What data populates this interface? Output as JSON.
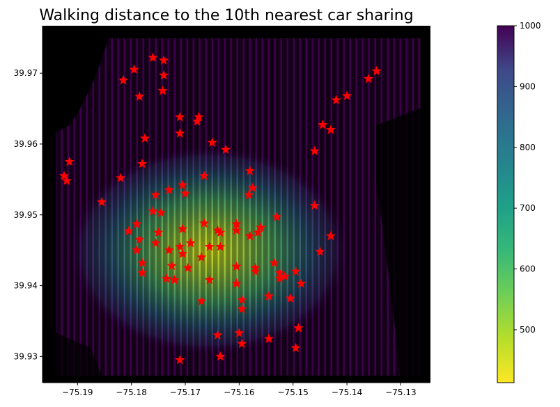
{
  "chart_data": {
    "type": "scatter",
    "title": "Walking distance to the 10th nearest car sharing",
    "xlabel": "",
    "ylabel": "",
    "xlim": [
      -75.1965,
      -75.1245
    ],
    "ylim": [
      39.9263,
      39.9767
    ],
    "x_ticks": [
      -75.19,
      -75.18,
      -75.17,
      -75.16,
      -75.15,
      -75.14,
      -75.13
    ],
    "x_tick_labels": [
      "−75.19",
      "−75.18",
      "−75.17",
      "−75.16",
      "−75.15",
      "−75.14",
      "−75.13"
    ],
    "y_ticks": [
      39.93,
      39.94,
      39.95,
      39.96,
      39.97
    ],
    "y_tick_labels": [
      "39.93",
      "39.94",
      "39.95",
      "39.96",
      "39.97"
    ],
    "background": "#000000",
    "grid": false,
    "colorbar": {
      "colormap": "viridis_r",
      "range": [
        413,
        1000
      ],
      "ticks": [
        500,
        600,
        700,
        800,
        900,
        1000
      ],
      "tick_labels": [
        "500",
        "600",
        "700",
        "800",
        "900",
        "1000"
      ]
    },
    "distance_field": {
      "peak_center": [
        -75.1675,
        39.9465
      ],
      "approx_min_value": 430,
      "approx_max_value": 1000
    },
    "station_marker": {
      "shape": "star",
      "color": "#ff0000"
    },
    "stations": [
      [
        -75.1915,
        39.9575
      ],
      [
        -75.1925,
        39.9555
      ],
      [
        -75.192,
        39.9548
      ],
      [
        -75.1855,
        39.9518
      ],
      [
        -75.1815,
        39.969
      ],
      [
        -75.1795,
        39.9705
      ],
      [
        -75.1785,
        39.9667
      ],
      [
        -75.176,
        39.9722
      ],
      [
        -75.174,
        39.9718
      ],
      [
        -75.174,
        39.9697
      ],
      [
        -75.1742,
        39.9675
      ],
      [
        -75.1775,
        39.9608
      ],
      [
        -75.178,
        39.9572
      ],
      [
        -75.182,
        39.9552
      ],
      [
        -75.171,
        39.9638
      ],
      [
        -75.171,
        39.9615
      ],
      [
        -75.1675,
        39.9638
      ],
      [
        -75.1678,
        39.9632
      ],
      [
        -75.165,
        39.9602
      ],
      [
        -75.1625,
        39.9592
      ],
      [
        -75.1665,
        39.9555
      ],
      [
        -75.158,
        39.9562
      ],
      [
        -75.1575,
        39.9538
      ],
      [
        -75.1582,
        39.9528
      ],
      [
        -75.146,
        39.959
      ],
      [
        -75.1445,
        39.9627
      ],
      [
        -75.143,
        39.962
      ],
      [
        -75.142,
        39.9662
      ],
      [
        -75.14,
        39.9668
      ],
      [
        -75.136,
        39.9692
      ],
      [
        -75.1345,
        39.9703
      ],
      [
        -75.146,
        39.9513
      ],
      [
        -75.143,
        39.947
      ],
      [
        -75.145,
        39.9448
      ],
      [
        -75.1755,
        39.9528
      ],
      [
        -75.173,
        39.9535
      ],
      [
        -75.1705,
        39.9542
      ],
      [
        -75.17,
        39.953
      ],
      [
        -75.176,
        39.9505
      ],
      [
        -75.1745,
        39.9503
      ],
      [
        -75.1805,
        39.9477
      ],
      [
        -75.179,
        39.9487
      ],
      [
        -75.1785,
        39.9465
      ],
      [
        -75.179,
        39.945
      ],
      [
        -75.178,
        39.9432
      ],
      [
        -75.178,
        39.9418
      ],
      [
        -75.1755,
        39.946
      ],
      [
        -75.175,
        39.9475
      ],
      [
        -75.173,
        39.945
      ],
      [
        -75.171,
        39.9455
      ],
      [
        -75.1705,
        39.9445
      ],
      [
        -75.1705,
        39.948
      ],
      [
        -75.169,
        39.946
      ],
      [
        -75.1725,
        39.9428
      ],
      [
        -75.1695,
        39.9425
      ],
      [
        -75.1735,
        39.941
      ],
      [
        -75.172,
        39.9408
      ],
      [
        -75.167,
        39.944
      ],
      [
        -75.1665,
        39.9488
      ],
      [
        -75.164,
        39.9478
      ],
      [
        -75.1635,
        39.9475
      ],
      [
        -75.1655,
        39.9455
      ],
      [
        -75.1635,
        39.9455
      ],
      [
        -75.1605,
        39.9487
      ],
      [
        -75.1605,
        39.9478
      ],
      [
        -75.158,
        39.947
      ],
      [
        -75.156,
        39.9482
      ],
      [
        -75.1565,
        39.9475
      ],
      [
        -75.153,
        39.9497
      ],
      [
        -75.1605,
        39.9427
      ],
      [
        -75.157,
        39.942
      ],
      [
        -75.157,
        39.9425
      ],
      [
        -75.1535,
        39.9432
      ],
      [
        -75.1525,
        39.9418
      ],
      [
        -75.1515,
        39.9413
      ],
      [
        -75.1525,
        39.941
      ],
      [
        -75.1495,
        39.942
      ],
      [
        -75.1485,
        39.9403
      ],
      [
        -75.1655,
        39.9408
      ],
      [
        -75.1605,
        39.9403
      ],
      [
        -75.1595,
        39.938
      ],
      [
        -75.1595,
        39.9367
      ],
      [
        -75.1545,
        39.9385
      ],
      [
        -75.1505,
        39.9382
      ],
      [
        -75.167,
        39.9378
      ],
      [
        -75.149,
        39.934
      ],
      [
        -75.1495,
        39.9312
      ],
      [
        -75.1545,
        39.9325
      ],
      [
        -75.16,
        39.9333
      ],
      [
        -75.1595,
        39.9318
      ],
      [
        -75.164,
        39.933
      ],
      [
        -75.1635,
        39.93
      ],
      [
        -75.171,
        39.9295
      ]
    ]
  }
}
